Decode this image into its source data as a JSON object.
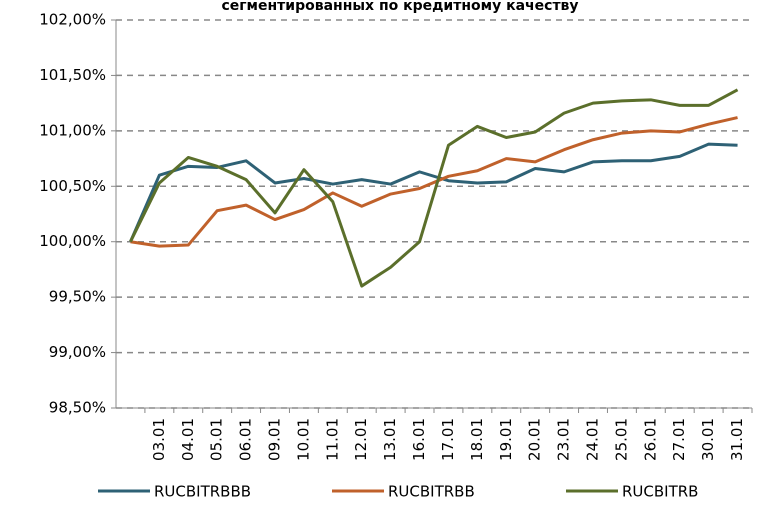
{
  "chart_data": {
    "type": "line",
    "title": "сегментированных по кредитному качеству",
    "categories": [
      null,
      "03.01",
      "04.01",
      "05.01",
      "06.01",
      "09.01",
      "10.01",
      "11.01",
      "12.01",
      "13.01",
      "16.01",
      "17.01",
      "18.01",
      "19.01",
      "20.01",
      "23.01",
      "24.01",
      "25.01",
      "26.01",
      "27.01",
      "30.01",
      "31.01"
    ],
    "series": [
      {
        "name": "RUCBITRBBB",
        "color": "#2e6175",
        "values": [
          100,
          100.6,
          100.68,
          100.67,
          100.73,
          100.53,
          100.57,
          100.52,
          100.56,
          100.52,
          100.63,
          100.55,
          100.53,
          100.54,
          100.66,
          100.63,
          100.72,
          100.73,
          100.73,
          100.77,
          100.88,
          100.87
        ]
      },
      {
        "name": "RUCBITRBB",
        "color": "#c0612b",
        "values": [
          100,
          99.96,
          99.97,
          100.28,
          100.33,
          100.2,
          100.29,
          100.44,
          100.32,
          100.43,
          100.48,
          100.59,
          100.64,
          100.75,
          100.72,
          100.83,
          100.92,
          100.98,
          101.0,
          100.99,
          101.06,
          101.12
        ]
      },
      {
        "name": "RUCBITRB",
        "color": "#5b6f2b",
        "values": [
          100,
          100.53,
          100.76,
          100.68,
          100.56,
          100.26,
          100.65,
          100.36,
          99.6,
          99.77,
          100.0,
          100.87,
          101.04,
          100.94,
          100.99,
          101.16,
          101.25,
          101.27,
          101.28,
          101.23,
          101.23,
          101.37
        ]
      }
    ],
    "ylim": [
      98.5,
      102
    ],
    "yticks": [
      {
        "value": 98.5,
        "label": "98,50%"
      },
      {
        "value": 99,
        "label": "99,00%"
      },
      {
        "value": 99.5,
        "label": "99,50%"
      },
      {
        "value": 100,
        "label": "100,00%"
      },
      {
        "value": 100.5,
        "label": "100,50%"
      },
      {
        "value": 101,
        "label": "101,00%"
      },
      {
        "value": 101.5,
        "label": "101,50%"
      },
      {
        "value": 102,
        "label": "102,00%"
      }
    ],
    "grid": true,
    "legend": "bottom"
  }
}
